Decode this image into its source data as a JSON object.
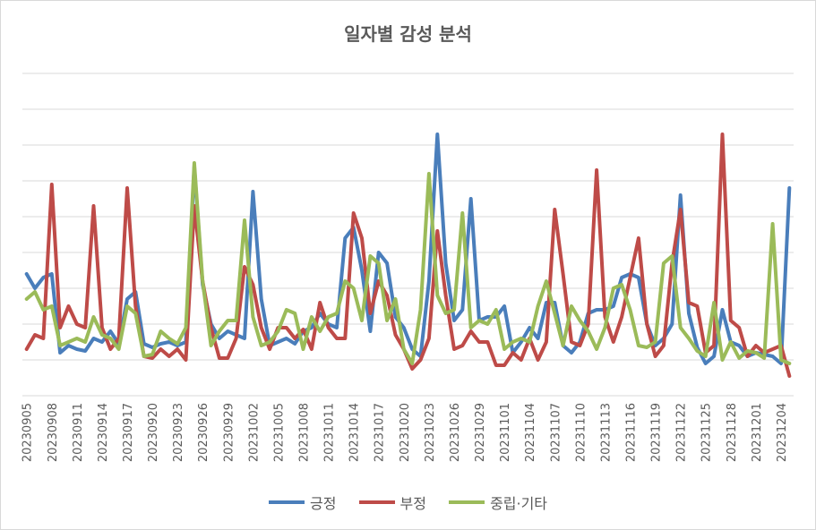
{
  "chart_data": {
    "type": "line",
    "title": "일자별 감성 분석",
    "x": [
      "20230905",
      "20230906",
      "20230907",
      "20230908",
      "20230909",
      "20230910",
      "20230911",
      "20230912",
      "20230913",
      "20230914",
      "20230915",
      "20230916",
      "20230917",
      "20230918",
      "20230919",
      "20230920",
      "20230921",
      "20230922",
      "20230923",
      "20230924",
      "20230925",
      "20230926",
      "20230927",
      "20230928",
      "20230929",
      "20230930",
      "20231001",
      "20231002",
      "20231003",
      "20231004",
      "20231005",
      "20231006",
      "20231007",
      "20231008",
      "20231009",
      "20231010",
      "20231011",
      "20231012",
      "20231013",
      "20231014",
      "20231015",
      "20231016",
      "20231017",
      "20231018",
      "20231019",
      "20231020",
      "20231021",
      "20231022",
      "20231023",
      "20231024",
      "20231025",
      "20231026",
      "20231027",
      "20231028",
      "20231029",
      "20231030",
      "20231031",
      "20231101",
      "20231102",
      "20231103",
      "20231104",
      "20231105",
      "20231106",
      "20231107",
      "20231108",
      "20231109",
      "20231110",
      "20231111",
      "20231112",
      "20231113",
      "20231114",
      "20231115",
      "20231116",
      "20231117",
      "20231118",
      "20231119",
      "20231120",
      "20231121",
      "20231122",
      "20231123",
      "20231124",
      "20231125",
      "20231126",
      "20231127",
      "20231128",
      "20231129",
      "20231130",
      "20231201",
      "20231202",
      "20231203",
      "20231204",
      "20231205"
    ],
    "tick_labels": [
      "20230905",
      "20230908",
      "20230911",
      "20230914",
      "20230917",
      "20230920",
      "20230923",
      "20230926",
      "20230929",
      "20231002",
      "20231005",
      "20231008",
      "20231011",
      "20231014",
      "20231017",
      "20231020",
      "20231023",
      "20231026",
      "20231029",
      "20231101",
      "20231104",
      "20231107",
      "20231110",
      "20231113",
      "20231116",
      "20231119",
      "20231122",
      "20231125",
      "20231128",
      "20231201",
      "20231204"
    ],
    "ylim": [
      -1,
      8
    ],
    "grid": true,
    "legend_position": "bottom",
    "series": [
      {
        "name": "긍정",
        "color": "#4a7ebb",
        "values": [
          2.4,
          2.0,
          2.3,
          2.4,
          0.2,
          0.4,
          0.3,
          0.25,
          0.6,
          0.5,
          0.8,
          0.45,
          1.7,
          1.9,
          0.45,
          0.35,
          0.45,
          0.5,
          0.4,
          0.5,
          5.4,
          2.1,
          1.0,
          0.6,
          0.8,
          0.7,
          0.6,
          4.7,
          1.7,
          0.4,
          0.5,
          0.6,
          0.45,
          0.8,
          0.9,
          1.3,
          1.0,
          0.9,
          3.4,
          3.7,
          2.5,
          0.8,
          3.0,
          2.7,
          1.2,
          0.9,
          0.3,
          0.1,
          2.2,
          6.3,
          2.7,
          1.1,
          1.4,
          4.5,
          1.1,
          1.2,
          1.2,
          1.5,
          0.2,
          0.5,
          0.9,
          0.6,
          1.6,
          1.6,
          0.4,
          0.2,
          0.5,
          1.3,
          1.4,
          1.4,
          1.5,
          2.3,
          2.4,
          2.3,
          1.0,
          0.4,
          0.6,
          1.0,
          4.6,
          1.3,
          0.35,
          -0.1,
          0.1,
          1.4,
          0.5,
          0.4,
          0.1,
          0.2,
          0.15,
          0.1,
          -0.1,
          4.8
        ]
      },
      {
        "name": "부정",
        "color": "#be4b48",
        "values": [
          0.3,
          0.7,
          0.6,
          4.9,
          0.9,
          1.5,
          1.0,
          0.9,
          4.3,
          0.9,
          0.3,
          0.6,
          4.8,
          1.5,
          0.1,
          0.05,
          0.3,
          0.1,
          0.3,
          0.0,
          4.3,
          2.2,
          0.9,
          0.05,
          0.05,
          0.6,
          2.6,
          2.1,
          0.9,
          0.3,
          0.9,
          0.9,
          0.6,
          0.85,
          0.3,
          1.6,
          0.9,
          0.6,
          0.6,
          4.1,
          3.4,
          1.3,
          2.2,
          1.8,
          0.7,
          0.3,
          -0.25,
          0.0,
          0.6,
          3.6,
          1.8,
          0.3,
          0.4,
          0.8,
          0.5,
          0.5,
          -0.15,
          -0.15,
          0.2,
          0.0,
          0.6,
          0.0,
          0.5,
          4.2,
          2.4,
          0.5,
          0.4,
          1.0,
          5.3,
          1.2,
          0.5,
          1.2,
          2.3,
          3.4,
          1.0,
          0.1,
          0.4,
          2.7,
          4.2,
          1.6,
          1.5,
          0.2,
          0.4,
          6.3,
          1.1,
          0.9,
          0.1,
          0.4,
          0.2,
          0.3,
          0.4,
          -0.45
        ]
      },
      {
        "name": "중립·기타",
        "color": "#9bbb59",
        "values": [
          1.7,
          1.9,
          1.4,
          1.5,
          0.4,
          0.5,
          0.6,
          0.5,
          1.2,
          0.7,
          0.6,
          0.3,
          1.5,
          1.3,
          0.1,
          0.15,
          0.8,
          0.6,
          0.45,
          0.9,
          5.5,
          2.2,
          0.4,
          0.8,
          1.1,
          1.1,
          3.9,
          1.2,
          0.4,
          0.5,
          0.8,
          1.4,
          1.3,
          0.3,
          1.2,
          0.8,
          1.2,
          1.3,
          2.2,
          2.0,
          1.1,
          2.9,
          2.7,
          1.1,
          1.7,
          0.3,
          -0.1,
          1.4,
          5.2,
          1.8,
          1.3,
          1.4,
          4.1,
          0.9,
          1.1,
          1.0,
          1.4,
          0.3,
          0.5,
          0.6,
          0.5,
          1.5,
          2.2,
          1.3,
          0.4,
          1.5,
          1.1,
          0.8,
          0.3,
          0.9,
          2.0,
          2.1,
          1.4,
          0.4,
          0.35,
          0.5,
          2.7,
          2.9,
          0.9,
          0.6,
          0.25,
          0.1,
          1.6,
          0.0,
          0.5,
          0.05,
          0.25,
          0.2,
          0.05,
          3.8,
          0.0,
          -0.1
        ]
      }
    ]
  }
}
